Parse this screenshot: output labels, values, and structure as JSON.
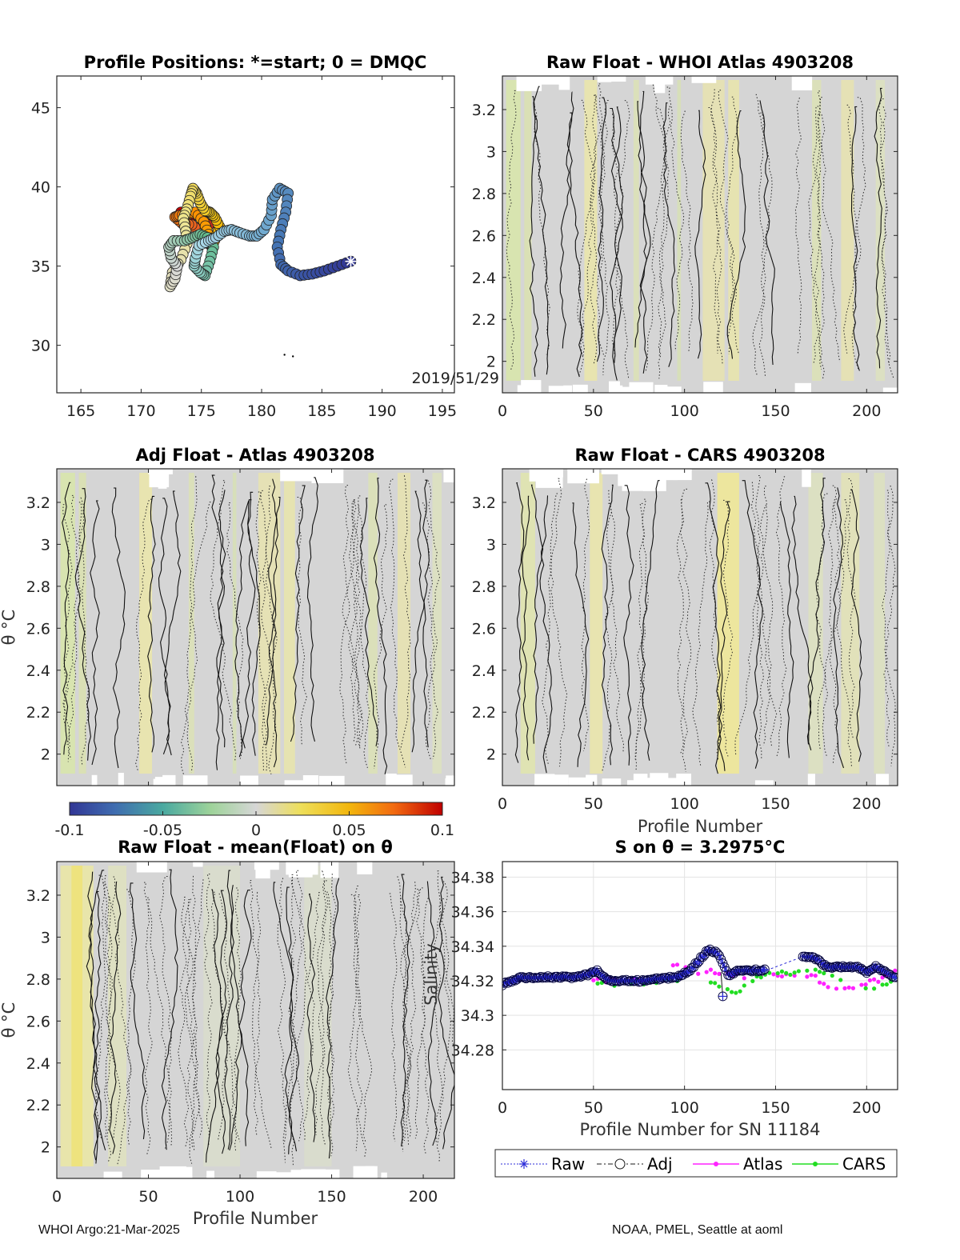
{
  "colors": {
    "section_background": "#d5d5d5",
    "raw_marker": "#2b2bd8",
    "adj_marker": "#00003c",
    "atlas": "#ff22ff",
    "cars": "#22dd22",
    "colormap": [
      "#313695",
      "#4575b4",
      "#74add1",
      "#abd9e9",
      "#5fb98a",
      "#d9d9d9",
      "#f0e68c",
      "#f1c40f",
      "#ff8c00",
      "#e34a33",
      "#c00000"
    ]
  },
  "footer": {
    "left": "WHOI Argo:21-Mar-2025",
    "right": "NOAA, PMEL, Seattle at aoml"
  },
  "chart_data": [
    {
      "id": "positions",
      "type": "scatter",
      "title": "Profile Positions: *=start; 0 = DMQC",
      "xlim": [
        163,
        196
      ],
      "ylim": [
        27,
        47
      ],
      "xticks": [
        "165",
        "170",
        "175",
        "180",
        "185",
        "190",
        "195"
      ],
      "yticks": [
        "30",
        "35",
        "40",
        "45"
      ],
      "annotation": "2019/51/29",
      "track_anchors": [
        [
          187.4,
          35.3
        ],
        [
          186.3,
          35.0
        ],
        [
          185.2,
          34.7
        ],
        [
          184.2,
          34.5
        ],
        [
          183.2,
          34.4
        ],
        [
          182.2,
          34.7
        ],
        [
          181.6,
          35.1
        ],
        [
          181.3,
          36.2
        ],
        [
          181.6,
          37.3
        ],
        [
          182.0,
          38.4
        ],
        [
          182.2,
          39.6
        ],
        [
          181.5,
          39.9
        ],
        [
          180.9,
          39.2
        ],
        [
          180.8,
          38.2
        ],
        [
          180.2,
          37.3
        ],
        [
          179.6,
          36.9
        ],
        [
          179.0,
          36.9
        ],
        [
          178.2,
          37.1
        ],
        [
          177.5,
          37.3
        ],
        [
          176.9,
          37.2
        ],
        [
          176.2,
          36.8
        ],
        [
          175.6,
          36.6
        ],
        [
          174.8,
          36.3
        ],
        [
          174.5,
          35.5
        ],
        [
          174.4,
          35.0
        ],
        [
          174.9,
          34.6
        ],
        [
          175.3,
          34.4
        ],
        [
          175.7,
          35.3
        ],
        [
          176.0,
          36.2
        ],
        [
          175.5,
          36.8
        ],
        [
          174.9,
          37.0
        ],
        [
          174.3,
          36.8
        ],
        [
          173.6,
          36.6
        ],
        [
          172.7,
          36.6
        ],
        [
          172.3,
          36.2
        ],
        [
          172.5,
          35.5
        ],
        [
          173.0,
          35.0
        ],
        [
          172.8,
          34.2
        ],
        [
          172.4,
          33.7
        ],
        [
          172.6,
          34.6
        ],
        [
          173.3,
          35.4
        ],
        [
          173.8,
          36.4
        ],
        [
          173.7,
          37.2
        ],
        [
          173.5,
          38.0
        ],
        [
          173.8,
          38.6
        ],
        [
          174.1,
          39.4
        ],
        [
          174.3,
          39.9
        ],
        [
          174.6,
          39.6
        ],
        [
          174.9,
          39.0
        ],
        [
          175.3,
          38.5
        ],
        [
          175.7,
          38.4
        ],
        [
          176.1,
          38.1
        ],
        [
          176.5,
          37.5
        ],
        [
          176.2,
          36.8
        ],
        [
          175.9,
          36.3
        ],
        [
          175.6,
          37.0
        ],
        [
          175.2,
          37.8
        ],
        [
          174.5,
          38.4
        ],
        [
          173.9,
          38.3
        ],
        [
          173.2,
          38.2
        ],
        [
          172.8,
          38.1
        ],
        [
          173.4,
          37.7
        ],
        [
          174.2,
          37.6
        ],
        [
          175.0,
          37.1
        ],
        [
          175.6,
          36.6
        ],
        [
          175.9,
          36.2
        ],
        [
          175.4,
          36.6
        ],
        [
          174.9,
          37.2
        ],
        [
          175.6,
          37.6
        ],
        [
          176.0,
          38.0
        ],
        [
          175.3,
          38.1
        ],
        [
          174.4,
          38.2
        ],
        [
          173.3,
          38.4
        ]
      ],
      "dots": [
        [
          181.9,
          29.4
        ],
        [
          182.6,
          29.3
        ]
      ]
    },
    {
      "id": "raw-atlas",
      "type": "heatmap",
      "title": "Raw Float - WHOI Atlas  4903208",
      "xlim": [
        0,
        217
      ],
      "ylim": [
        1.85,
        3.36
      ],
      "xticks": [
        "0",
        "50",
        "100",
        "150",
        "200"
      ],
      "yticks": [
        "2",
        "2.2",
        "2.4",
        "2.6",
        "2.8",
        "3",
        "3.2"
      ],
      "colorbar": {
        "min": -0.1,
        "max": 0.1
      }
    },
    {
      "id": "adj-atlas",
      "type": "heatmap",
      "title": "Adj Float - Atlas  4903208",
      "ylabel": "θ °C",
      "xlim": [
        0,
        217
      ],
      "ylim": [
        1.85,
        3.36
      ],
      "yticks": [
        "2",
        "2.2",
        "2.4",
        "2.6",
        "2.8",
        "3",
        "3.2"
      ]
    },
    {
      "id": "raw-cars",
      "type": "heatmap",
      "title": "Raw Float - CARS  4903208",
      "xlabel": "Profile Number",
      "xlim": [
        0,
        217
      ],
      "ylim": [
        1.85,
        3.36
      ],
      "xticks": [
        "0",
        "50",
        "100",
        "150",
        "200"
      ],
      "yticks": [
        "2",
        "2.2",
        "2.4",
        "2.6",
        "2.8",
        "3",
        "3.2"
      ]
    },
    {
      "id": "colorbar",
      "type": "heatmap",
      "ticks": [
        "-0.1",
        "-0.05",
        "0",
        "0.05",
        "0.1"
      ],
      "range": [
        -0.1,
        0.1
      ]
    },
    {
      "id": "raw-mean",
      "type": "heatmap",
      "title": "Raw Float - mean(Float) on θ",
      "xlabel": "Profile Number",
      "ylabel": "θ °C",
      "xlim": [
        0,
        217
      ],
      "ylim": [
        1.85,
        3.36
      ],
      "xticks": [
        "0",
        "50",
        "100",
        "150",
        "200"
      ],
      "yticks": [
        "2",
        "2.2",
        "2.4",
        "2.6",
        "2.8",
        "3",
        "3.2"
      ]
    },
    {
      "id": "salinity",
      "type": "line",
      "title": "S on θ = 3.2975°C",
      "xlabel": "Profile Number for SN 11184",
      "ylabel": "Salinity",
      "xlim": [
        0,
        217
      ],
      "ylim": [
        34.257,
        34.389
      ],
      "xticks": [
        "0",
        "50",
        "100",
        "150",
        "200"
      ],
      "yticks": [
        "34.28",
        "34.3",
        "34.32",
        "34.34",
        "34.36",
        "34.38"
      ],
      "legend": [
        "Raw",
        "Adj",
        "Atlas",
        "CARS"
      ],
      "legend_position": "bottom",
      "salinity_anchors": [
        [
          0,
          34.318
        ],
        [
          10,
          34.322
        ],
        [
          20,
          34.322
        ],
        [
          30,
          34.322
        ],
        [
          40,
          34.322
        ],
        [
          48,
          34.324
        ],
        [
          52,
          34.326
        ],
        [
          58,
          34.32
        ],
        [
          65,
          34.32
        ],
        [
          75,
          34.32
        ],
        [
          85,
          34.321
        ],
        [
          95,
          34.322
        ],
        [
          102,
          34.325
        ],
        [
          108,
          34.332
        ],
        [
          113,
          34.338
        ],
        [
          118,
          34.336
        ],
        [
          121,
          34.33
        ],
        [
          124,
          34.323
        ],
        [
          130,
          34.326
        ],
        [
          140,
          34.326
        ],
        [
          145,
          34.326
        ],
        [
          165,
          34.334
        ],
        [
          172,
          34.333
        ],
        [
          178,
          34.328
        ],
        [
          185,
          34.328
        ],
        [
          195,
          34.328
        ],
        [
          200,
          34.325
        ],
        [
          205,
          34.328
        ],
        [
          210,
          34.325
        ],
        [
          216,
          34.322
        ]
      ],
      "raw_outlier": [
        121,
        34.311
      ],
      "atlas_anchors": [
        [
          50,
          34.321
        ],
        [
          65,
          34.32
        ],
        [
          85,
          34.319
        ],
        [
          95,
          34.329
        ],
        [
          105,
          34.325
        ],
        [
          118,
          34.325
        ],
        [
          135,
          34.322
        ],
        [
          145,
          34.324
        ],
        [
          170,
          34.323
        ],
        [
          180,
          34.316
        ],
        [
          195,
          34.316
        ],
        [
          216,
          34.325
        ]
      ],
      "cars_anchors": [
        [
          50,
          34.318
        ],
        [
          70,
          34.318
        ],
        [
          95,
          34.321
        ],
        [
          108,
          34.323
        ],
        [
          120,
          34.316
        ],
        [
          130,
          34.314
        ],
        [
          140,
          34.323
        ],
        [
          175,
          34.326
        ],
        [
          190,
          34.318
        ],
        [
          205,
          34.316
        ],
        [
          216,
          34.322
        ]
      ]
    }
  ]
}
